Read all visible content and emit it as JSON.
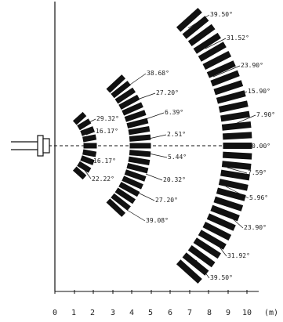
{
  "diagram": {
    "x_axis": {
      "ticks": [
        "0",
        "1",
        "2",
        "3",
        "4",
        "5",
        "6",
        "7",
        "8",
        "9",
        "10"
      ],
      "unit": "(m)"
    },
    "angle_labels": {
      "arc1": {
        "up": [
          "29.32°",
          "16.17°"
        ],
        "down": [
          "16.17°",
          "22.22°"
        ]
      },
      "arc2": {
        "up": [
          "38.68°",
          "27.20°",
          "6.39°",
          "2.51°"
        ],
        "down": [
          "5.44°",
          "20.32°",
          "27.20°",
          "39.08°"
        ]
      },
      "arc3": {
        "up": [
          "39.50°",
          "31.52°",
          "23.90°",
          "15.90°",
          "7.90°",
          "0.00°"
        ],
        "down": [
          "7.59°",
          "5.96°",
          "23.90°",
          "31.92°",
          "39.50°"
        ]
      }
    },
    "colors": {
      "ink": "#111111",
      "text": "#222222"
    }
  }
}
